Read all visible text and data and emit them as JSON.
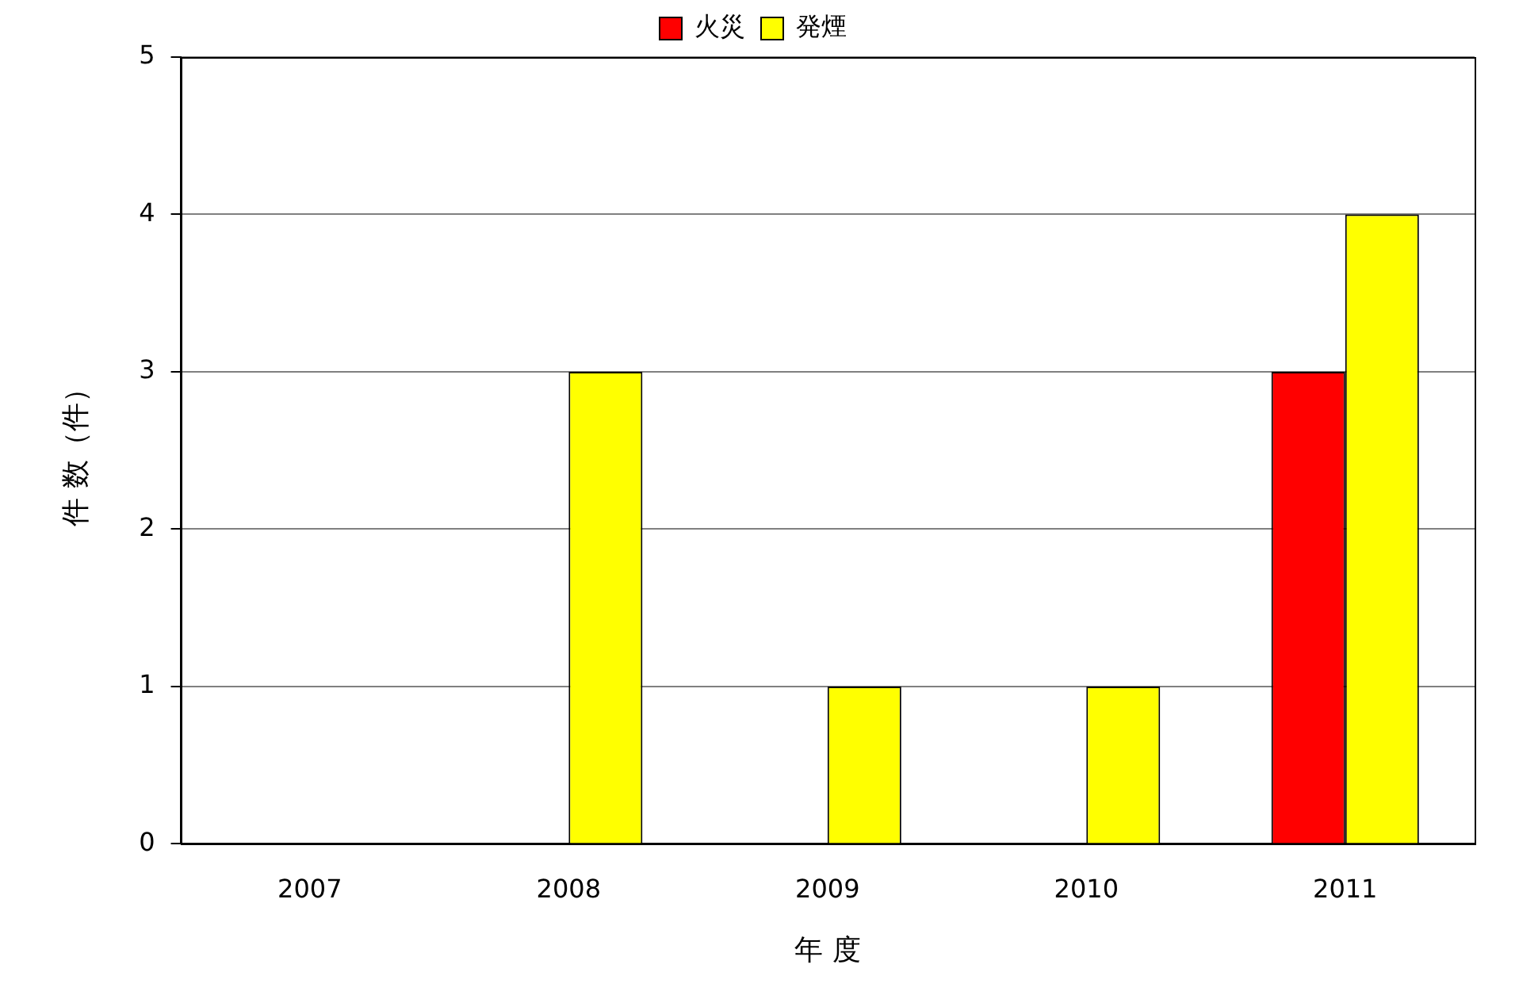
{
  "chart_data": {
    "type": "bar",
    "xlabel": "年 度",
    "ylabel": "件 数（件）",
    "categories": [
      "2007",
      "2008",
      "2009",
      "2010",
      "2011"
    ],
    "series": [
      {
        "name": "火災",
        "color": "#ff0000",
        "values": [
          0,
          0,
          0,
          0,
          3
        ]
      },
      {
        "name": "発煙",
        "color": "#ffff00",
        "values": [
          0,
          3,
          1,
          1,
          4
        ]
      }
    ],
    "ylim": [
      0,
      5
    ],
    "yticks": [
      0,
      1,
      2,
      3,
      4,
      5
    ],
    "grid": "y",
    "legend": "top"
  }
}
